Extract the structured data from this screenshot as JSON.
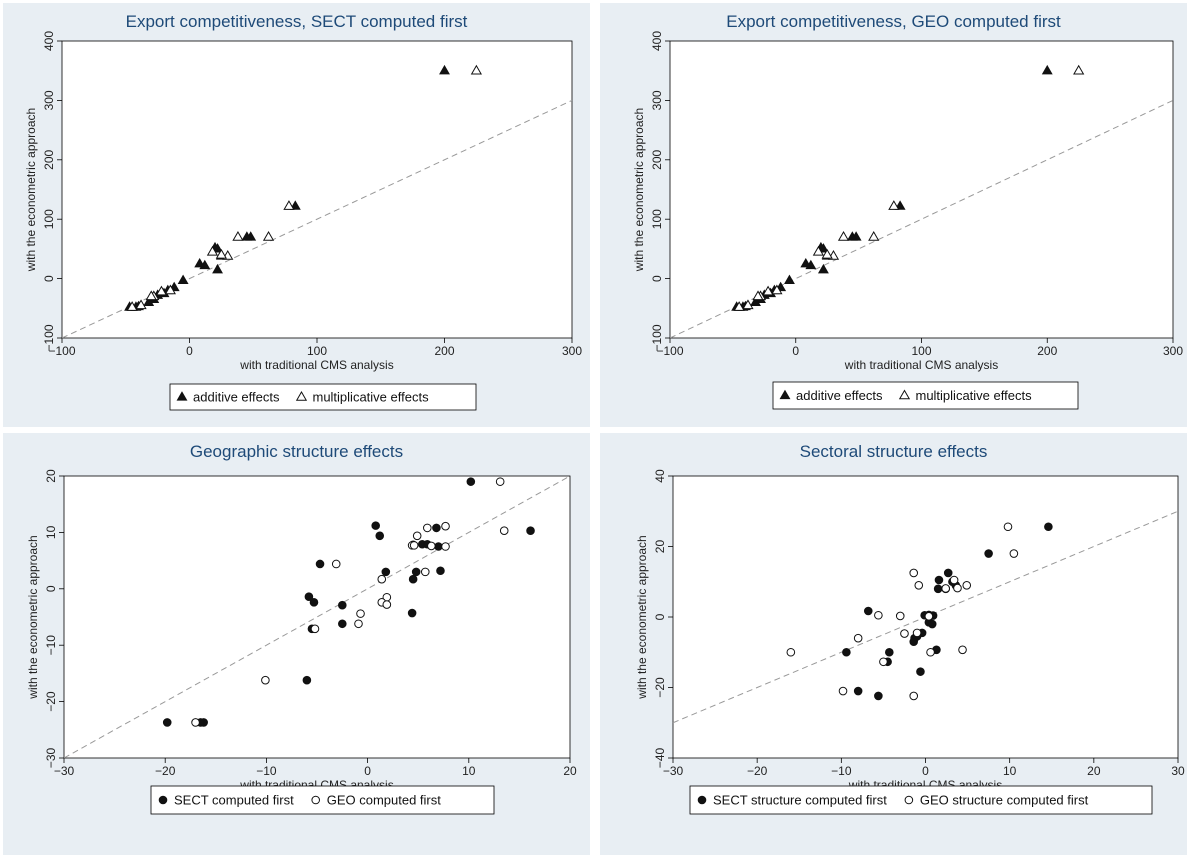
{
  "chart_data": [
    {
      "type": "scatter",
      "title": "Export competitiveness, SECT computed first",
      "xlabel": "with traditional CMS analysis",
      "ylabel": "with the econometric approach",
      "xlim": [
        -100,
        300
      ],
      "ylim": [
        -100,
        400
      ],
      "xticks": [
        -100,
        0,
        100,
        200,
        300
      ],
      "yticks": [
        -100,
        0,
        100,
        200,
        300,
        400
      ],
      "xtick_labels": [
        "−100",
        "0",
        "100",
        "200",
        "300"
      ],
      "ytick_labels": [
        "−100",
        "0",
        "100",
        "200",
        "300",
        "400"
      ],
      "reference_line": {
        "from": [
          -100,
          -100
        ],
        "to": [
          300,
          300
        ],
        "style": "dashed",
        "color": "#999999"
      },
      "legend_position": "bottom",
      "series": [
        {
          "name": "additive effects",
          "marker": "filled-triangle",
          "points": [
            [
              200,
              350
            ],
            [
              83,
              122
            ],
            [
              48,
              70
            ],
            [
              45,
              70
            ],
            [
              25,
              38
            ],
            [
              22,
              50
            ],
            [
              22,
              15
            ],
            [
              20,
              52
            ],
            [
              12,
              22
            ],
            [
              8,
              25
            ],
            [
              -5,
              -3
            ],
            [
              -12,
              -15
            ],
            [
              -17,
              -20
            ],
            [
              -20,
              -25
            ],
            [
              -25,
              -28
            ],
            [
              -28,
              -35
            ],
            [
              -32,
              -40
            ],
            [
              -40,
              -47
            ],
            [
              -42,
              -48
            ],
            [
              -47,
              -48
            ]
          ]
        },
        {
          "name": "multiplicative effects",
          "marker": "hollow-triangle",
          "points": [
            [
              225,
              350
            ],
            [
              78,
              122
            ],
            [
              62,
              70
            ],
            [
              38,
              70
            ],
            [
              30,
              38
            ],
            [
              25,
              40
            ],
            [
              18,
              45
            ],
            [
              -15,
              -20
            ],
            [
              -22,
              -22
            ],
            [
              -28,
              -30
            ],
            [
              -30,
              -30
            ],
            [
              -38,
              -45
            ],
            [
              -45,
              -48
            ]
          ]
        }
      ]
    },
    {
      "type": "scatter",
      "title": "Export competitiveness, GEO computed first",
      "xlabel": "with traditional CMS analysis",
      "ylabel": "with the econometric approach",
      "xlim": [
        -100,
        300
      ],
      "ylim": [
        -100,
        400
      ],
      "xticks": [
        -100,
        0,
        100,
        200,
        300
      ],
      "yticks": [
        -100,
        0,
        100,
        200,
        300,
        400
      ],
      "xtick_labels": [
        "−100",
        "0",
        "100",
        "200",
        "300"
      ],
      "ytick_labels": [
        "−100",
        "0",
        "100",
        "200",
        "300",
        "400"
      ],
      "reference_line": {
        "from": [
          -100,
          -100
        ],
        "to": [
          300,
          300
        ],
        "style": "dashed",
        "color": "#999999"
      },
      "legend_position": "bottom",
      "series": [
        {
          "name": "additive effects",
          "marker": "filled-triangle",
          "points": [
            [
              200,
              350
            ],
            [
              83,
              122
            ],
            [
              48,
              70
            ],
            [
              45,
              70
            ],
            [
              25,
              38
            ],
            [
              22,
              50
            ],
            [
              22,
              15
            ],
            [
              20,
              52
            ],
            [
              12,
              22
            ],
            [
              8,
              25
            ],
            [
              -5,
              -3
            ],
            [
              -12,
              -15
            ],
            [
              -17,
              -20
            ],
            [
              -20,
              -25
            ],
            [
              -25,
              -28
            ],
            [
              -28,
              -35
            ],
            [
              -32,
              -40
            ],
            [
              -40,
              -47
            ],
            [
              -42,
              -48
            ],
            [
              -47,
              -48
            ]
          ]
        },
        {
          "name": "multiplicative effects",
          "marker": "hollow-triangle",
          "points": [
            [
              225,
              350
            ],
            [
              78,
              122
            ],
            [
              62,
              70
            ],
            [
              38,
              70
            ],
            [
              30,
              38
            ],
            [
              25,
              40
            ],
            [
              18,
              45
            ],
            [
              -15,
              -20
            ],
            [
              -22,
              -22
            ],
            [
              -28,
              -30
            ],
            [
              -30,
              -30
            ],
            [
              -38,
              -45
            ],
            [
              -45,
              -48
            ]
          ]
        }
      ]
    },
    {
      "type": "scatter",
      "title": "Geographic structure effects",
      "xlabel": "with traditional CMS analysis",
      "ylabel": "with the econometric approach",
      "xlim": [
        -30,
        20
      ],
      "ylim": [
        -30,
        20
      ],
      "xticks": [
        -30,
        -20,
        -10,
        0,
        10,
        20
      ],
      "yticks": [
        -30,
        -20,
        -10,
        0,
        10,
        20
      ],
      "xtick_labels": [
        "−30",
        "−20",
        "−10",
        "0",
        "10",
        "20"
      ],
      "ytick_labels": [
        "−30",
        "−20",
        "−10",
        "0",
        "10",
        "20"
      ],
      "reference_line": {
        "from": [
          -30,
          -30
        ],
        "to": [
          20,
          20
        ],
        "style": "dashed",
        "color": "#999999"
      },
      "legend_position": "bottom",
      "series": [
        {
          "name": "SECT computed first",
          "marker": "filled-circle",
          "points": [
            [
              10.2,
              19
            ],
            [
              16.1,
              10.3
            ],
            [
              0.8,
              11.2
            ],
            [
              1.2,
              9.4
            ],
            [
              6.8,
              10.8
            ],
            [
              5.4,
              7.9
            ],
            [
              5.9,
              7.9
            ],
            [
              4.5,
              7.8
            ],
            [
              7.0,
              7.5
            ],
            [
              7.2,
              3.2
            ],
            [
              4.8,
              3.0
            ],
            [
              1.8,
              3.0
            ],
            [
              -4.7,
              4.4
            ],
            [
              -5.8,
              -1.4
            ],
            [
              -5.3,
              -2.4
            ],
            [
              -2.5,
              -2.9
            ],
            [
              -2.5,
              -6.2
            ],
            [
              -5.5,
              -7.1
            ],
            [
              4.5,
              1.7
            ],
            [
              4.4,
              -4.3
            ],
            [
              -6.0,
              -16.2
            ],
            [
              -16.2,
              -23.7
            ],
            [
              -16.5,
              -23.7
            ],
            [
              -19.8,
              -23.7
            ]
          ]
        },
        {
          "name": "GEO computed first",
          "marker": "hollow-circle",
          "points": [
            [
              13.1,
              19
            ],
            [
              13.5,
              10.3
            ],
            [
              5.9,
              10.8
            ],
            [
              7.7,
              11.1
            ],
            [
              4.9,
              9.4
            ],
            [
              4.4,
              7.7
            ],
            [
              4.6,
              7.7
            ],
            [
              6.3,
              7.6
            ],
            [
              7.7,
              7.5
            ],
            [
              -3.1,
              4.4
            ],
            [
              5.7,
              3.0
            ],
            [
              1.4,
              1.7
            ],
            [
              1.9,
              -1.5
            ],
            [
              1.4,
              -2.4
            ],
            [
              1.9,
              -2.8
            ],
            [
              -0.7,
              -4.4
            ],
            [
              -0.9,
              -6.2
            ],
            [
              -5.2,
              -7.1
            ],
            [
              -10.1,
              -16.2
            ],
            [
              -17.0,
              -23.7
            ]
          ]
        }
      ]
    },
    {
      "type": "scatter",
      "title": "Sectoral structure effects",
      "xlabel": "with traditional CMS analysis",
      "ylabel": "with the econometric approach",
      "xlim": [
        -30,
        30
      ],
      "ylim": [
        -40,
        40
      ],
      "xticks": [
        -30,
        -20,
        -10,
        0,
        10,
        20,
        30
      ],
      "yticks": [
        -40,
        -20,
        0,
        20,
        40
      ],
      "xtick_labels": [
        "−30",
        "−20",
        "−10",
        "0",
        "10",
        "20",
        "30"
      ],
      "ytick_labels": [
        "−40",
        "−20",
        "0",
        "20",
        "40"
      ],
      "reference_line": {
        "from": [
          -30,
          -30
        ],
        "to": [
          30,
          30
        ],
        "style": "dashed",
        "color": "#999999"
      },
      "legend_position": "bottom",
      "series": [
        {
          "name": "SECT structure computed first",
          "marker": "filled-circle",
          "points": [
            [
              14.6,
              25.6
            ],
            [
              7.5,
              18.0
            ],
            [
              2.7,
              12.5
            ],
            [
              1.6,
              10.5
            ],
            [
              3.2,
              10.0
            ],
            [
              2.4,
              8.0
            ],
            [
              3.6,
              9.0
            ],
            [
              1.5,
              8.0
            ],
            [
              0.4,
              0.6
            ],
            [
              0.9,
              0.4
            ],
            [
              -0.1,
              0.5
            ],
            [
              0.4,
              -1.5
            ],
            [
              0.8,
              -2.0
            ],
            [
              -0.4,
              -4.5
            ],
            [
              -1.3,
              -6.0
            ],
            [
              -1.4,
              -7.0
            ],
            [
              -1.0,
              -5.5
            ],
            [
              -4.3,
              -10.0
            ],
            [
              -4.5,
              -12.7
            ],
            [
              -0.6,
              -15.5
            ],
            [
              -5.6,
              -22.4
            ],
            [
              -8.0,
              -21.0
            ],
            [
              -9.4,
              -10.0
            ],
            [
              -6.8,
              1.7
            ],
            [
              1.3,
              -9.3
            ]
          ]
        },
        {
          "name": "GEO structure computed first",
          "marker": "hollow-circle",
          "points": [
            [
              9.8,
              25.6
            ],
            [
              10.5,
              18.0
            ],
            [
              -1.4,
              12.5
            ],
            [
              3.4,
              10.5
            ],
            [
              4.9,
              9.0
            ],
            [
              -0.8,
              9.0
            ],
            [
              0.4,
              0.2
            ],
            [
              -3.0,
              0.3
            ],
            [
              -5.6,
              0.5
            ],
            [
              -1.0,
              -4.5
            ],
            [
              -2.5,
              -4.7
            ],
            [
              -8.0,
              -6.0
            ],
            [
              -5.0,
              -12.7
            ],
            [
              4.4,
              -9.3
            ],
            [
              0.6,
              -10.0
            ],
            [
              -16.0,
              -10.0
            ],
            [
              -9.8,
              -21.0
            ],
            [
              -1.4,
              -22.4
            ],
            [
              3.8,
              8.2
            ],
            [
              2.4,
              8.1
            ]
          ]
        }
      ]
    }
  ]
}
